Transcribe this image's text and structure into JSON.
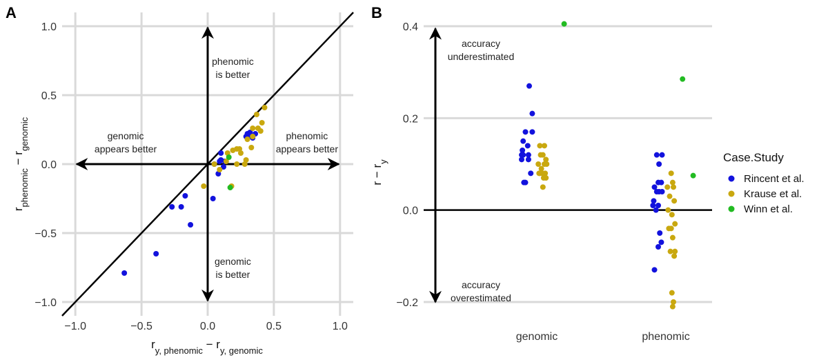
{
  "chart_data": [
    {
      "panel": "A",
      "type": "scatter",
      "xlabel_main": "r",
      "xlabel_sub": "y, phenomic",
      "xlabel_mid": " − r",
      "xlabel_sub2": "y, genomic",
      "ylabel_main": "r",
      "ylabel_sub": "phenomic",
      "ylabel_mid": " − r",
      "ylabel_sub2": "genomic",
      "xlim": [
        -1.1,
        1.1
      ],
      "ylim": [
        -1.1,
        1.1
      ],
      "x_ticks": [
        -1.0,
        -0.5,
        0.0,
        0.5,
        1.0
      ],
      "x_tick_labels": [
        "−1.0",
        "−0.5",
        "0.0",
        "0.5",
        "1.0"
      ],
      "y_ticks": [
        -1.0,
        -0.5,
        0.0,
        0.5,
        1.0
      ],
      "y_tick_labels": [
        "−1.0",
        "−0.5",
        "0.0",
        "0.5",
        "1.0"
      ],
      "grid": true,
      "annotations": [
        {
          "lines": [
            "phenomic",
            "is better"
          ],
          "x": 0.19,
          "y": 0.72
        },
        {
          "lines": [
            "genomic",
            "is better"
          ],
          "x": 0.19,
          "y": -0.73
        },
        {
          "lines": [
            "genomic",
            "appears better"
          ],
          "x": -0.62,
          "y": 0.18
        },
        {
          "lines": [
            "phenomic",
            "appears better"
          ],
          "x": 0.75,
          "y": 0.18
        }
      ],
      "series": [
        {
          "name": "Rincent et al.",
          "color": "#1212dd",
          "points": [
            [
              -0.63,
              -0.79
            ],
            [
              -0.39,
              -0.65
            ],
            [
              -0.13,
              -0.44
            ],
            [
              -0.27,
              -0.31
            ],
            [
              -0.2,
              -0.31
            ],
            [
              -0.17,
              -0.23
            ],
            [
              0.04,
              -0.25
            ],
            [
              0.08,
              -0.07
            ],
            [
              0.09,
              0.02
            ],
            [
              0.1,
              0.08
            ],
            [
              0.12,
              -0.02
            ],
            [
              0.1,
              0.03
            ],
            [
              0.29,
              0.2
            ],
            [
              0.31,
              0.2
            ],
            [
              0.3,
              0.22
            ],
            [
              0.32,
              0.23
            ],
            [
              0.36,
              0.22
            ],
            [
              0.34,
              0.19
            ],
            [
              0.05,
              0.0
            ],
            [
              0.13,
              0.02
            ]
          ]
        },
        {
          "name": "Krause et al.",
          "color": "#c9a80f",
          "points": [
            [
              -0.03,
              -0.16
            ],
            [
              0.05,
              0.0
            ],
            [
              0.09,
              -0.04
            ],
            [
              0.14,
              0.02
            ],
            [
              0.15,
              0.08
            ],
            [
              0.18,
              -0.16
            ],
            [
              0.19,
              0.1
            ],
            [
              0.22,
              0.11
            ],
            [
              0.24,
              0.11
            ],
            [
              0.25,
              0.08
            ],
            [
              0.22,
              0.0
            ],
            [
              0.28,
              0.0
            ],
            [
              0.3,
              0.18
            ],
            [
              0.33,
              0.12
            ],
            [
              0.34,
              0.2
            ],
            [
              0.34,
              0.26
            ],
            [
              0.37,
              0.36
            ],
            [
              0.38,
              0.26
            ],
            [
              0.41,
              0.3
            ],
            [
              0.43,
              0.41
            ],
            [
              0.4,
              0.24
            ],
            [
              0.29,
              0.03
            ]
          ]
        },
        {
          "name": "Winn et al.",
          "color": "#22bb22",
          "points": [
            [
              0.16,
              0.05
            ],
            [
              0.17,
              -0.17
            ]
          ]
        }
      ]
    },
    {
      "panel": "B",
      "type": "scatter",
      "xlabel": "",
      "ylabel_main": "r − r",
      "ylabel_sub": "y",
      "categories": [
        "genomic",
        "phenomic"
      ],
      "ylim": [
        -0.23,
        0.43
      ],
      "y_ticks": [
        -0.2,
        0.0,
        0.2,
        0.4
      ],
      "y_tick_labels": [
        "−0.2",
        "0.0",
        "0.2",
        "0.4"
      ],
      "grid": true,
      "annotations": [
        {
          "lines": [
            "accuracy",
            "underestimated"
          ],
          "cat_offset": -1.78,
          "y": 0.355
        },
        {
          "lines": [
            "accuracy",
            "overestimated"
          ],
          "cat_offset": -1.78,
          "y": -0.17
        }
      ],
      "legend": {
        "title": "Case.Study",
        "position": "right",
        "entries": [
          "Rincent et al.",
          "Krause et al.",
          "Winn et al."
        ]
      },
      "series": [
        {
          "name": "Rincent et al.",
          "color": "#1212dd",
          "points": [
            [
              "genomic",
              -0.1,
              0.27
            ],
            [
              "genomic",
              -0.06,
              0.21
            ],
            [
              "genomic",
              -0.15,
              0.17
            ],
            [
              "genomic",
              -0.06,
              0.17
            ],
            [
              "genomic",
              -0.18,
              0.15
            ],
            [
              "genomic",
              -0.19,
              0.13
            ],
            [
              "genomic",
              -0.12,
              0.14
            ],
            [
              "genomic",
              -0.2,
              0.11
            ],
            [
              "genomic",
              -0.18,
              0.12
            ],
            [
              "genomic",
              -0.11,
              0.11
            ],
            [
              "genomic",
              -0.11,
              0.12
            ],
            [
              "genomic",
              -0.2,
              0.12
            ],
            [
              "genomic",
              -0.08,
              0.08
            ],
            [
              "genomic",
              -0.17,
              0.06
            ],
            [
              "genomic",
              -0.15,
              0.06
            ],
            [
              "phenomic",
              -0.12,
              0.12
            ],
            [
              "phenomic",
              -0.05,
              0.12
            ],
            [
              "phenomic",
              -0.09,
              0.1
            ],
            [
              "phenomic",
              -0.15,
              0.05
            ],
            [
              "phenomic",
              -0.12,
              0.04
            ],
            [
              "phenomic",
              -0.06,
              0.06
            ],
            [
              "phenomic",
              -0.1,
              0.06
            ],
            [
              "phenomic",
              -0.13,
              0.0
            ],
            [
              "phenomic",
              -0.17,
              0.01
            ],
            [
              "phenomic",
              -0.09,
              0.04
            ],
            [
              "phenomic",
              -0.1,
              0.01
            ],
            [
              "phenomic",
              -0.05,
              0.04
            ],
            [
              "phenomic",
              -0.16,
              0.02
            ],
            [
              "phenomic",
              -0.08,
              -0.05
            ],
            [
              "phenomic",
              -0.1,
              -0.08
            ],
            [
              "phenomic",
              -0.06,
              -0.07
            ],
            [
              "phenomic",
              -0.15,
              -0.13
            ]
          ]
        },
        {
          "name": "Krause et al.",
          "color": "#c9a80f",
          "points": [
            [
              "genomic",
              0.04,
              0.14
            ],
            [
              "genomic",
              0.1,
              0.14
            ],
            [
              "genomic",
              0.05,
              0.12
            ],
            [
              "genomic",
              0.08,
              0.12
            ],
            [
              "genomic",
              0.12,
              0.11
            ],
            [
              "genomic",
              0.02,
              0.1
            ],
            [
              "genomic",
              0.1,
              0.1
            ],
            [
              "genomic",
              0.13,
              0.1
            ],
            [
              "genomic",
              0.06,
              0.09
            ],
            [
              "genomic",
              0.03,
              0.08
            ],
            [
              "genomic",
              0.07,
              0.08
            ],
            [
              "genomic",
              0.11,
              0.08
            ],
            [
              "genomic",
              0.04,
              0.08
            ],
            [
              "genomic",
              0.09,
              0.07
            ],
            [
              "genomic",
              0.12,
              0.07
            ],
            [
              "genomic",
              0.08,
              0.05
            ],
            [
              "phenomic",
              0.07,
              0.08
            ],
            [
              "phenomic",
              0.09,
              0.06
            ],
            [
              "phenomic",
              0.02,
              0.05
            ],
            [
              "phenomic",
              0.1,
              0.05
            ],
            [
              "phenomic",
              0.05,
              0.03
            ],
            [
              "phenomic",
              0.11,
              0.02
            ],
            [
              "phenomic",
              0.03,
              0.0
            ],
            [
              "phenomic",
              0.08,
              -0.01
            ],
            [
              "phenomic",
              0.12,
              -0.03
            ],
            [
              "phenomic",
              0.04,
              -0.04
            ],
            [
              "phenomic",
              0.07,
              -0.04
            ],
            [
              "phenomic",
              0.09,
              -0.06
            ],
            [
              "phenomic",
              0.12,
              -0.09
            ],
            [
              "phenomic",
              0.06,
              -0.09
            ],
            [
              "phenomic",
              0.11,
              -0.1
            ],
            [
              "phenomic",
              0.08,
              -0.18
            ],
            [
              "phenomic",
              0.1,
              -0.2
            ],
            [
              "phenomic",
              0.09,
              -0.21
            ]
          ]
        },
        {
          "name": "Winn et al.",
          "color": "#22bb22",
          "points": [
            [
              "genomic",
              0.36,
              0.405
            ],
            [
              "phenomic",
              0.22,
              0.285
            ],
            [
              "phenomic",
              0.36,
              0.075
            ]
          ]
        }
      ]
    }
  ],
  "panel_labels": [
    "A",
    "B"
  ]
}
